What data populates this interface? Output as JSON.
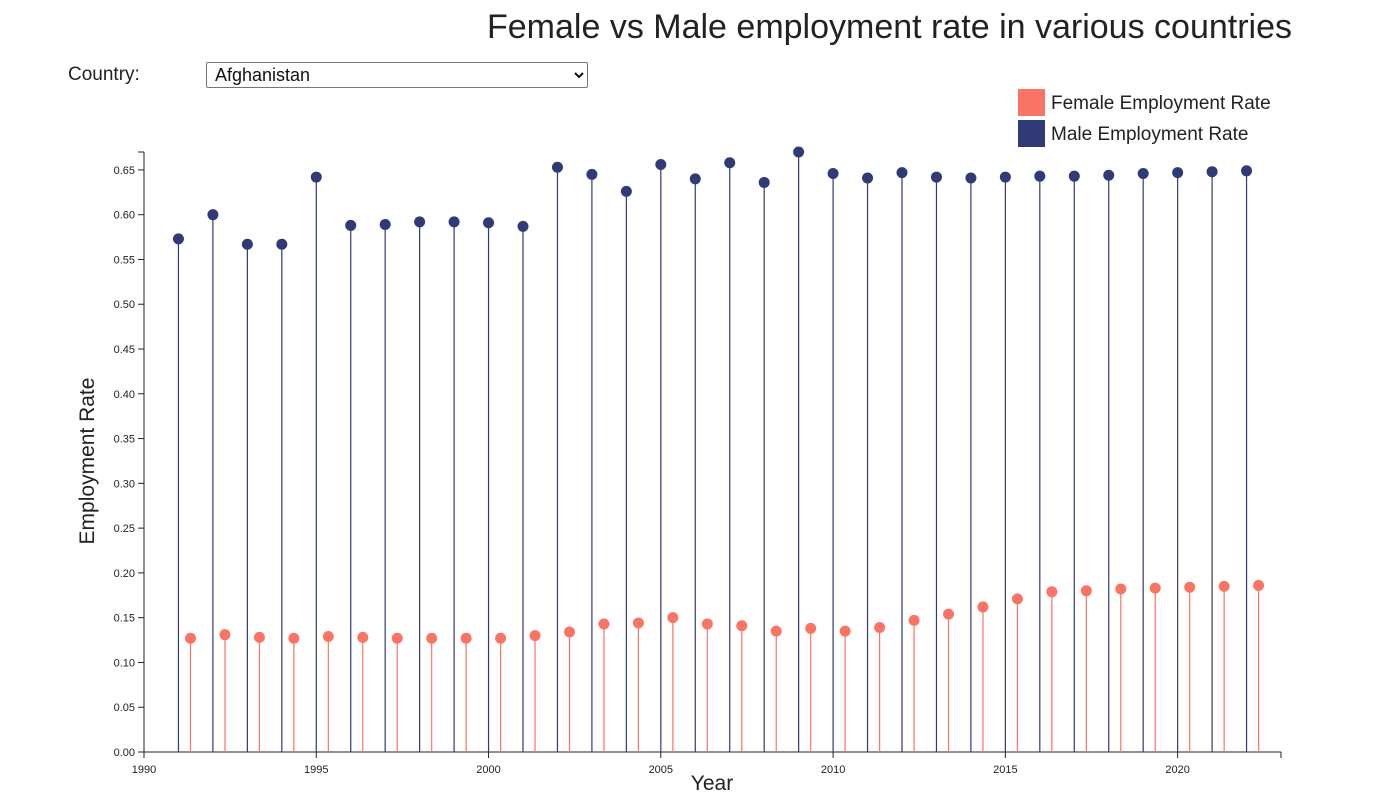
{
  "title": "Female vs Male employment rate in various countries",
  "controls": {
    "country_label": "Country:",
    "country_selected": "Afghanistan"
  },
  "colors": {
    "female": "#fa7465",
    "male": "#2f3a76",
    "axis": "#222222"
  },
  "chart_data": {
    "type": "scatter",
    "style": "lollipop",
    "xlabel": "Year",
    "ylabel": "Employment Rate",
    "xlim": [
      1990,
      2023
    ],
    "ylim": [
      0,
      0.67
    ],
    "x_ticks": [
      "1990",
      "1995",
      "2000",
      "2005",
      "2010",
      "2015",
      "2020"
    ],
    "y_ticks": [
      "0.00",
      "0.05",
      "0.10",
      "0.15",
      "0.20",
      "0.25",
      "0.30",
      "0.35",
      "0.40",
      "0.45",
      "0.50",
      "0.55",
      "0.60",
      "0.65"
    ],
    "legend_position": "top-right",
    "series": [
      {
        "name": "Female Employment Rate",
        "x": [
          1991,
          1992,
          1993,
          1994,
          1995,
          1996,
          1997,
          1998,
          1999,
          2000,
          2001,
          2002,
          2003,
          2004,
          2005,
          2006,
          2007,
          2008,
          2009,
          2010,
          2011,
          2012,
          2013,
          2014,
          2015,
          2016,
          2017,
          2018,
          2019,
          2020,
          2021,
          2022
        ],
        "values": [
          0.127,
          0.131,
          0.128,
          0.127,
          0.129,
          0.128,
          0.127,
          0.127,
          0.127,
          0.127,
          0.13,
          0.134,
          0.143,
          0.144,
          0.15,
          0.143,
          0.141,
          0.135,
          0.138,
          0.135,
          0.139,
          0.147,
          0.154,
          0.162,
          0.171,
          0.179,
          0.18,
          0.182,
          0.183,
          0.184,
          0.185,
          0.186
        ]
      },
      {
        "name": "Male Employment Rate",
        "x": [
          1991,
          1992,
          1993,
          1994,
          1995,
          1996,
          1997,
          1998,
          1999,
          2000,
          2001,
          2002,
          2003,
          2004,
          2005,
          2006,
          2007,
          2008,
          2009,
          2010,
          2011,
          2012,
          2013,
          2014,
          2015,
          2016,
          2017,
          2018,
          2019,
          2020,
          2021,
          2022
        ],
        "values": [
          0.573,
          0.6,
          0.567,
          0.567,
          0.642,
          0.588,
          0.589,
          0.592,
          0.592,
          0.591,
          0.587,
          0.653,
          0.645,
          0.626,
          0.656,
          0.64,
          0.658,
          0.636,
          0.67,
          0.646,
          0.641,
          0.647,
          0.642,
          0.641,
          0.642,
          0.643,
          0.643,
          0.644,
          0.646,
          0.647,
          0.648,
          0.649
        ]
      }
    ]
  }
}
